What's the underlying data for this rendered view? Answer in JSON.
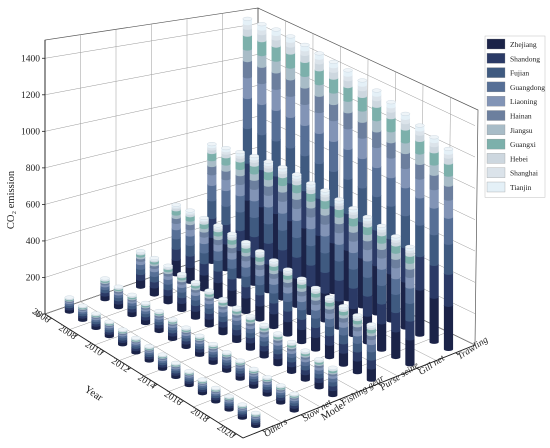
{
  "chart_data": {
    "type": "bar",
    "subtype": "3d-stacked-cylinder",
    "ylabel": "CO₂ emission",
    "xlabel": "Year",
    "zlabel": "Mode",
    "ylim": [
      0,
      1500
    ],
    "y_ticks": [
      "0",
      "200",
      "400",
      "600",
      "800",
      "1000",
      "1200",
      "1400"
    ],
    "years": [
      "2006",
      "2007",
      "2008",
      "2009",
      "2010",
      "2011",
      "2012",
      "2013",
      "2014",
      "2015",
      "2016",
      "2017",
      "2018",
      "2019",
      "2020"
    ],
    "year_ticks": [
      "2006",
      "2008",
      "2010",
      "2012",
      "2014",
      "2016",
      "2018",
      "2020"
    ],
    "modes": [
      "Others",
      "Stow net",
      "Fishing gear",
      "Purse seine",
      "Gill net",
      "Trawling"
    ],
    "provinces": [
      "Zhejiang",
      "Shandong",
      "Fujian",
      "Guangdong",
      "Liaoning",
      "Hainan",
      "Jiangsu",
      "Guangxi",
      "Hebei",
      "Shanghai",
      "Tianjin"
    ],
    "colors": [
      "#1b2348",
      "#2b3a66",
      "#3f5a80",
      "#566f96",
      "#8294b6",
      "#6c7f9e",
      "#a8bcc7",
      "#7cb0ab",
      "#cdd7df",
      "#dbe3ea",
      "#e4f0f7"
    ],
    "province_shares": [
      0.22,
      0.16,
      0.15,
      0.13,
      0.09,
      0.07,
      0.05,
      0.06,
      0.03,
      0.02,
      0.02
    ],
    "totals": {
      "Trawling": [
        1470,
        1480,
        1490,
        1490,
        1480,
        1470,
        1460,
        1450,
        1430,
        1410,
        1380,
        1350,
        1320,
        1290,
        1260
      ],
      "Gill net": [
        730,
        750,
        770,
        790,
        800,
        810,
        810,
        800,
        800,
        790,
        780,
        770,
        760,
        740,
        720
      ],
      "Purse seine": [
        420,
        430,
        430,
        430,
        425,
        420,
        410,
        400,
        390,
        380,
        370,
        360,
        350,
        340,
        330
      ],
      "Fishing gear": [
        210,
        215,
        215,
        212,
        210,
        205,
        200,
        195,
        190,
        185,
        180,
        175,
        170,
        165,
        160
      ],
      "Stow net": [
        120,
        118,
        117,
        116,
        115,
        113,
        111,
        110,
        108,
        106,
        104,
        102,
        100,
        98,
        96
      ],
      "Others": [
        80,
        80,
        82,
        82,
        83,
        82,
        81,
        80,
        79,
        78,
        77,
        76,
        75,
        74,
        73
      ]
    }
  }
}
